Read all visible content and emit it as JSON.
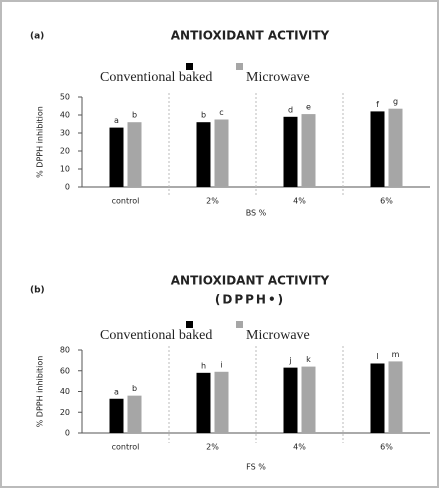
{
  "chart_data": [
    {
      "type": "bar",
      "panel_label": "(a)",
      "title": "ANTIOXIDANT ACTIVITY",
      "y_label": "% DPPH inhibition",
      "x_label": "BS %",
      "categories": [
        "control",
        "2%",
        "4%",
        "6%"
      ],
      "series": [
        {
          "name": "Conventional baked",
          "color": "#000000",
          "values": [
            33,
            36,
            39,
            42
          ],
          "letters": [
            "a",
            "b",
            "d",
            "f"
          ]
        },
        {
          "name": "Microwave",
          "color": "#a6a6a6",
          "values": [
            36,
            37.5,
            40.5,
            43.5
          ],
          "letters": [
            "b",
            "c",
            "e",
            "g"
          ]
        }
      ],
      "ylim": [
        0,
        50
      ],
      "yticks": [
        0,
        10,
        20,
        30,
        40,
        50
      ]
    },
    {
      "type": "bar",
      "panel_label": "(b)",
      "title": "ANTIOXIDANT ACTIVITY",
      "subtitle": "(DPPH•)",
      "y_label": "% DPPH inhibition",
      "x_label": "FS %",
      "categories": [
        "control",
        "2%",
        "4%",
        "6%"
      ],
      "series": [
        {
          "name": "Conventional baked",
          "color": "#000000",
          "values": [
            33,
            58,
            63,
            67
          ],
          "letters": [
            "a",
            "h",
            "j",
            "l"
          ]
        },
        {
          "name": "Microwave",
          "color": "#a6a6a6",
          "values": [
            36,
            59,
            64,
            69
          ],
          "letters": [
            "b",
            "i",
            "k",
            "m"
          ]
        }
      ],
      "ylim": [
        0,
        80
      ],
      "yticks": [
        0,
        20,
        40,
        60,
        80
      ]
    }
  ]
}
